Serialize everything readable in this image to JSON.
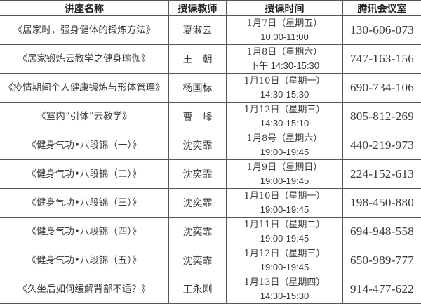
{
  "headers": [
    "讲座名称",
    "授课教师",
    "授课时间",
    "腾讯会议室"
  ],
  "rows": [
    {
      "name": "《居家时，强身健体的锻炼方法》",
      "teacher": "夏淑云",
      "date": "1月7日（星期五）",
      "time": "10:00-11:00",
      "room": "130-606-073"
    },
    {
      "name": "《居家锻炼云教学之健身瑜伽》",
      "teacher": "王　朝",
      "date": "1月8日（星期六）",
      "time": "下午 14:30-15:30",
      "room": "747-163-156"
    },
    {
      "name": "《疫情期间个人健康锻炼与形体管理》",
      "teacher": "杨国标",
      "date": "1月10日（星期一）",
      "time": "14:30-15:30",
      "room": "690-734-106"
    },
    {
      "name": "《室内“引体”云教学》",
      "teacher": "曹　峰",
      "date": "1月12日（星期三）",
      "time": "14:30-15:10",
      "room": "805-812-269"
    },
    {
      "name": "《健身气功•八段锦（一）》",
      "teacher": "沈奕霏",
      "date": "1月8号（星期六）",
      "time": "19:00-19:45",
      "room": "440-219-973"
    },
    {
      "name": "《健身气功•八段锦（二）》",
      "teacher": "沈奕霏",
      "date": "1月9日（星期日）",
      "time": "19:00-19:45",
      "room": "224-152-613"
    },
    {
      "name": "《健身气功•八段锦（三）》",
      "teacher": "沈奕霏",
      "date": "1月10日（星期一）",
      "time": "19:00-19:45",
      "room": "198-450-880"
    },
    {
      "name": "《健身气功•八段锦（四）》",
      "teacher": "沈奕霏",
      "date": "1月11日（星期二）",
      "time": "19:00-19:45",
      "room": "694-948-558"
    },
    {
      "name": "《健身气功•八段锦（五）》",
      "teacher": "沈奕霏",
      "date": "1月12日（星期三）",
      "time": "19:00-19:45",
      "room": "650-989-777"
    },
    {
      "name": "《久坐后如何缓解背部不适？》",
      "teacher": "王永刚",
      "date": "1月13日（星期四）",
      "time": "14:30-15:30",
      "room": "914-477-622"
    }
  ]
}
